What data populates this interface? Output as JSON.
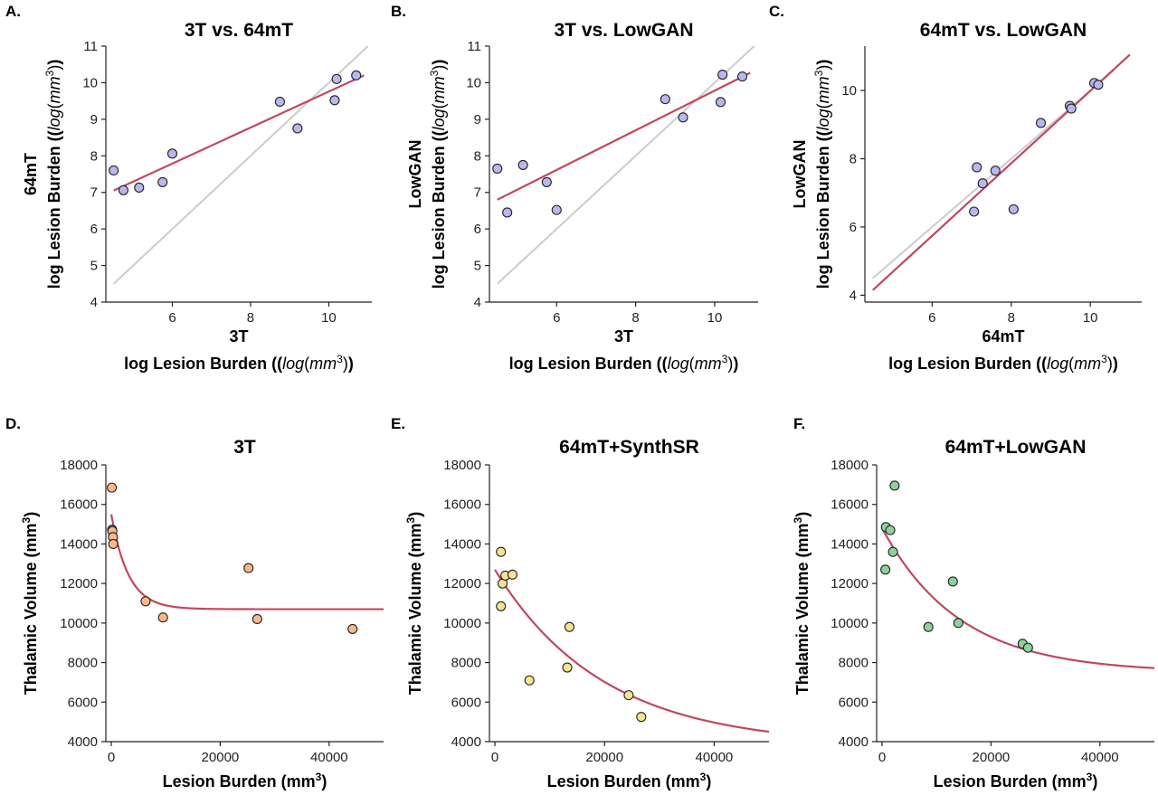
{
  "chart_data": [
    {
      "letter": "A.",
      "type": "scatter",
      "title": "3T vs. 64mT",
      "xlabel1": "3T",
      "xlabel2": "log Lesion Burden (log(mm3))",
      "ylabel1": "64mT",
      "ylabel2": "log Lesion Burden (log(mm3))",
      "xlim": [
        4.3,
        11.1
      ],
      "ylim": [
        4,
        11
      ],
      "xticks": [
        6,
        8,
        10
      ],
      "yticks": [
        4,
        5,
        6,
        7,
        8,
        9,
        10,
        11
      ],
      "point_color": "#b8b8ee",
      "points": [
        [
          4.5,
          7.6
        ],
        [
          4.75,
          7.06
        ],
        [
          5.15,
          7.13
        ],
        [
          5.75,
          7.28
        ],
        [
          6.0,
          8.06
        ],
        [
          8.75,
          9.48
        ],
        [
          9.2,
          8.75
        ],
        [
          10.15,
          9.52
        ],
        [
          10.2,
          10.1
        ],
        [
          10.7,
          10.2
        ]
      ],
      "fit_line": [
        [
          4.5,
          7.05
        ],
        [
          10.9,
          10.2
        ]
      ],
      "identity_line": [
        [
          4.5,
          4.5
        ],
        [
          11.0,
          11.0
        ]
      ]
    },
    {
      "letter": "B.",
      "type": "scatter",
      "title": "3T vs. LowGAN",
      "xlabel1": "3T",
      "xlabel2": "log Lesion Burden (log(mm3))",
      "ylabel1": "LowGAN",
      "ylabel2": "log Lesion Burden (log(mm3))",
      "xlim": [
        4.3,
        11.1
      ],
      "ylim": [
        4,
        11
      ],
      "xticks": [
        6,
        8,
        10
      ],
      "yticks": [
        4,
        5,
        6,
        7,
        8,
        9,
        10,
        11
      ],
      "point_color": "#b8b8ee",
      "points": [
        [
          4.5,
          7.65
        ],
        [
          4.75,
          6.45
        ],
        [
          5.15,
          7.75
        ],
        [
          5.75,
          7.28
        ],
        [
          6.0,
          6.52
        ],
        [
          8.75,
          9.55
        ],
        [
          9.2,
          9.05
        ],
        [
          10.15,
          9.47
        ],
        [
          10.2,
          10.22
        ],
        [
          10.7,
          10.17
        ]
      ],
      "fit_line": [
        [
          4.5,
          6.8
        ],
        [
          10.9,
          10.27
        ]
      ],
      "identity_line": [
        [
          4.5,
          4.5
        ],
        [
          11.0,
          11.0
        ]
      ]
    },
    {
      "letter": "C.",
      "type": "scatter",
      "title": "64mT vs. LowGAN",
      "xlabel1": "64mT",
      "xlabel2": "log Lesion Burden (log(mm3))",
      "ylabel1": "LowGAN",
      "ylabel2": "log Lesion Burden (log(mm3))",
      "xlim": [
        4.3,
        11.3
      ],
      "ylim": [
        3.8,
        11.3
      ],
      "xticks": [
        6,
        8,
        10
      ],
      "yticks": [
        4,
        6,
        8,
        10
      ],
      "point_color": "#b8b8ee",
      "points": [
        [
          7.06,
          6.45
        ],
        [
          7.13,
          7.75
        ],
        [
          7.28,
          7.28
        ],
        [
          7.6,
          7.65
        ],
        [
          8.06,
          6.52
        ],
        [
          8.75,
          9.05
        ],
        [
          9.48,
          9.55
        ],
        [
          9.52,
          9.47
        ],
        [
          10.1,
          10.22
        ],
        [
          10.2,
          10.17
        ]
      ],
      "fit_line": [
        [
          4.5,
          4.15
        ],
        [
          11.0,
          11.05
        ]
      ],
      "identity_line": [
        [
          4.5,
          4.5
        ],
        [
          10.6,
          10.6
        ]
      ]
    },
    {
      "letter": "D.",
      "type": "scatter",
      "title": "3T",
      "xlabel": "Lesion Burden (mm3)",
      "ylabel": "Thalamic Volume (mm3)",
      "xlim": [
        -1000,
        50000
      ],
      "ylim": [
        4000,
        18000
      ],
      "xticks": [
        0,
        20000,
        40000
      ],
      "yticks": [
        4000,
        6000,
        8000,
        10000,
        12000,
        14000,
        16000,
        18000
      ],
      "point_color": "#f7b98c",
      "points": [
        [
          100,
          16850
        ],
        [
          150,
          14720
        ],
        [
          200,
          14650
        ],
        [
          300,
          14350
        ],
        [
          350,
          14000
        ],
        [
          6300,
          11100
        ],
        [
          9500,
          10280
        ],
        [
          25200,
          12780
        ],
        [
          26800,
          10200
        ],
        [
          44300,
          9700
        ]
      ],
      "fit": {
        "a": 10700,
        "b": 4800,
        "k": 0.00032,
        "x0": 0,
        "x1": 50000
      }
    },
    {
      "letter": "E.",
      "type": "scatter",
      "title": "64mT+SynthSR",
      "xlabel": "Lesion Burden (mm3)",
      "ylabel": "Thalamic Volume (mm3)",
      "xlim": [
        -1000,
        50000
      ],
      "ylim": [
        4000,
        18000
      ],
      "xticks": [
        0,
        20000,
        40000
      ],
      "yticks": [
        4000,
        6000,
        8000,
        10000,
        12000,
        14000,
        16000,
        18000
      ],
      "point_color": "#f7e391",
      "points": [
        [
          1100,
          13600
        ],
        [
          1100,
          10850
        ],
        [
          1400,
          12000
        ],
        [
          1900,
          12400
        ],
        [
          3200,
          12450
        ],
        [
          6300,
          7100
        ],
        [
          13200,
          7750
        ],
        [
          13600,
          9800
        ],
        [
          24400,
          6350
        ],
        [
          26700,
          5250
        ]
      ],
      "fit": {
        "a": 3800,
        "b": 8900,
        "k": 5.08e-05,
        "x0": 0,
        "x1": 50000
      }
    },
    {
      "letter": "F.",
      "type": "scatter",
      "title": "64mT+LowGAN",
      "xlabel": "Lesion Burden (mm3)",
      "ylabel": "Thalamic Volume (mm3)",
      "xlim": [
        -1000,
        50000
      ],
      "ylim": [
        4000,
        18000
      ],
      "xticks": [
        0,
        20000,
        40000
      ],
      "yticks": [
        4000,
        6000,
        8000,
        10000,
        12000,
        14000,
        16000,
        18000
      ],
      "point_color": "#8fd19e",
      "points": [
        [
          600,
          12700
        ],
        [
          700,
          14850
        ],
        [
          1500,
          14700
        ],
        [
          2000,
          13600
        ],
        [
          2300,
          16950
        ],
        [
          8500,
          9800
        ],
        [
          13000,
          12100
        ],
        [
          14000,
          10000
        ],
        [
          25800,
          8950
        ],
        [
          26800,
          8750
        ]
      ],
      "fit": {
        "a": 7500,
        "b": 7300,
        "k": 7e-05,
        "x0": 0,
        "x1": 50000
      }
    }
  ]
}
